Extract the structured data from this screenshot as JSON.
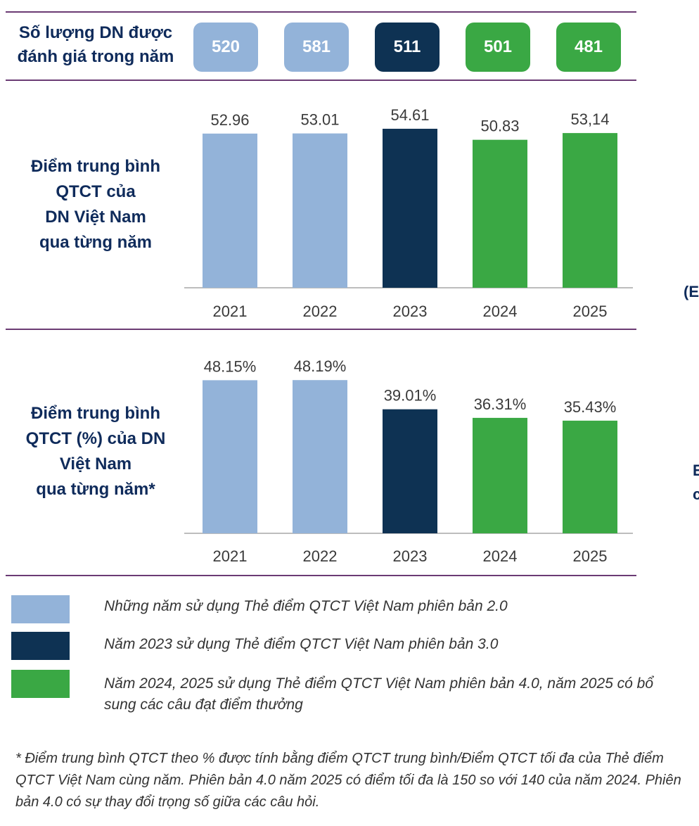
{
  "colors": {
    "v2": "#93b3d9",
    "v3": "#0e3253",
    "v4": "#3aa844",
    "rule": "#6b3b74",
    "axis": "#bdbdbd"
  },
  "header": {
    "label_line1": "Số lượng DN được",
    "label_line2": "đánh giá trong năm",
    "counts": [
      "520",
      "581",
      "511",
      "501",
      "481"
    ]
  },
  "chart_data": [
    {
      "type": "bar",
      "title": "Điểm trung bình QTCT của DN Việt Nam qua từng năm",
      "title_lines": [
        "Điểm trung bình",
        "QTCT của",
        "DN Việt Nam",
        "qua từng năm"
      ],
      "categories": [
        "2021",
        "2022",
        "2023",
        "2024",
        "2025"
      ],
      "values": [
        52.96,
        53.01,
        54.61,
        50.83,
        53.14
      ],
      "data_labels": [
        "52.96",
        "53.01",
        "54.61",
        "50.83",
        "53,14"
      ],
      "ylim": [
        0,
        58
      ],
      "grid": false
    },
    {
      "type": "bar",
      "title": "Điểm trung bình QTCT (%) của DN Việt Nam qua từng năm*",
      "title_lines": [
        "Điểm trung bình",
        "QTCT (%) của DN",
        "Việt Nam",
        "qua từng năm*"
      ],
      "categories": [
        "2021",
        "2022",
        "2023",
        "2024",
        "2025"
      ],
      "values": [
        48.15,
        48.19,
        39.01,
        36.31,
        35.43
      ],
      "data_labels": [
        "48.15%",
        "48.19%",
        "39.01%",
        "36.31%",
        "35.43%"
      ],
      "ylim": [
        0,
        52
      ],
      "grid": false
    }
  ],
  "bar_color_keys": [
    "v2",
    "v2",
    "v3",
    "v4",
    "v4"
  ],
  "legend": [
    {
      "color_key": "v2",
      "text": "Những năm sử dụng Thẻ điểm QTCT Việt Nam phiên bản 2.0"
    },
    {
      "color_key": "v3",
      "text": "Năm 2023 sử dụng Thẻ điểm QTCT Việt Nam phiên bản 3.0"
    },
    {
      "color_key": "v4",
      "text": "Năm 2024, 2025 sử dụng Thẻ điểm QTCT Việt Nam phiên bản 4.0, năm 2025 có bổ sung các câu đạt điểm thưởng"
    }
  ],
  "footnote": "* Điểm trung bình QTCT theo % được tính bằng điểm QTCT trung bình/Điểm QTCT tối đa của Thẻ điểm QTCT Việt Nam cùng năm. Phiên bản 4.0 năm 2025 có điểm tối đa là 150 so với 140 của năm 2024. Phiên bản 4.0 có sự thay đổi trọng số giữa các câu hỏi.",
  "side_fragments": [
    "(E",
    "E",
    "c"
  ]
}
